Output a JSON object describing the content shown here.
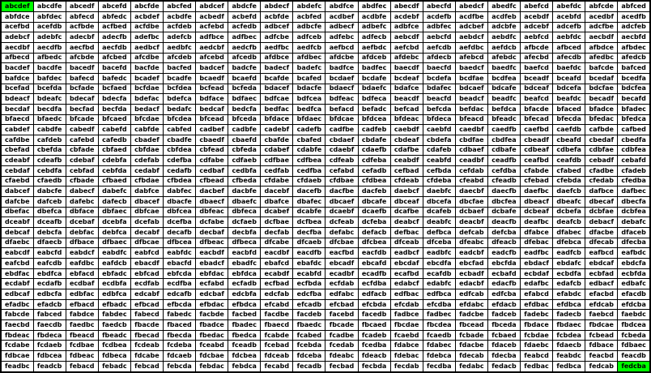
{
  "chart_data": {
    "type": "table",
    "columns": 20,
    "rows": 36,
    "highlighted_cells": [
      "abcdef",
      "fedcba"
    ],
    "colors": {
      "highlight": "#00ff00",
      "grid": "#000000",
      "text": "#000000",
      "background": "#ffffff"
    },
    "cells": [
      "abcdef",
      "abcdfe",
      "abcedf",
      "abcefd",
      "abcfde",
      "abcfed",
      "abdcef",
      "abdcfe",
      "abdecf",
      "abdefc",
      "abdfce",
      "abdfec",
      "abecdf",
      "abecfd",
      "abedcf",
      "abedfc",
      "abefcd",
      "abefdc",
      "abfcde",
      "abfced",
      "abfdce",
      "abfdec",
      "abfecd",
      "abfedc",
      "acbdef",
      "acbdfe",
      "acbedf",
      "acbefd",
      "acbfde",
      "acbfed",
      "acdbef",
      "acdbfe",
      "acdebf",
      "acdefb",
      "acdfbe",
      "acdfeb",
      "acebdf",
      "acebfd",
      "acedbf",
      "acedfb",
      "acefbd",
      "acefdb",
      "acfbde",
      "acfbed",
      "acfdbe",
      "acfdeb",
      "acfebd",
      "acfedb",
      "adbcef",
      "adbcfe",
      "adbecf",
      "adbefc",
      "adbfce",
      "adbfec",
      "adcbef",
      "adcbfe",
      "adcebf",
      "adcefb",
      "adcfbe",
      "adcfeb",
      "adebcf",
      "adebfc",
      "adecbf",
      "adecfb",
      "adefbc",
      "adefcb",
      "adfbce",
      "adfbec",
      "adfcbe",
      "adfceb",
      "adfebc",
      "adfecb",
      "aebcdf",
      "aebcfd",
      "aebdcf",
      "aebdfc",
      "aebfcd",
      "aebfdc",
      "aecbdf",
      "aecbfd",
      "aecdbf",
      "aecdfb",
      "aecfbd",
      "aecfdb",
      "aedbcf",
      "aedbfc",
      "aedcbf",
      "aedcfb",
      "aedfbc",
      "aedfcb",
      "aefbcd",
      "aefbdc",
      "aefcbd",
      "aefcdb",
      "aefdbc",
      "aefdcb",
      "afbcde",
      "afbced",
      "afbdce",
      "afbdec",
      "afbecd",
      "afbedc",
      "afcbde",
      "afcbed",
      "afcdbe",
      "afcdeb",
      "afcebd",
      "afcedb",
      "afdbce",
      "afdbec",
      "afdcbe",
      "afdceb",
      "afdebc",
      "afdecb",
      "afebcd",
      "afebdc",
      "afecbd",
      "afecdb",
      "afedbc",
      "afedcb",
      "bacdef",
      "bacdfe",
      "bacedf",
      "bacefd",
      "bacfde",
      "bacfed",
      "badcef",
      "badcfe",
      "badecf",
      "badefc",
      "badfce",
      "badfec",
      "baecdf",
      "baecfd",
      "baedcf",
      "baedfc",
      "baefcd",
      "baefdc",
      "bafcde",
      "bafced",
      "bafdce",
      "bafdec",
      "bafecd",
      "bafedc",
      "bcadef",
      "bcadfe",
      "bcaedf",
      "bcaefd",
      "bcafde",
      "bcafed",
      "bcdaef",
      "bcdafe",
      "bcdeaf",
      "bcdefa",
      "bcdfae",
      "bcdfea",
      "bceadf",
      "bceafd",
      "bcedaf",
      "bcedfa",
      "bcefad",
      "bcefda",
      "bcfade",
      "bcfaed",
      "bcfdae",
      "bcfdea",
      "bcfead",
      "bcfeda",
      "bdacef",
      "bdacfe",
      "bdaecf",
      "bdaefc",
      "bdafce",
      "bdafec",
      "bdcaef",
      "bdcafe",
      "bdceaf",
      "bdcefa",
      "bdcfae",
      "bdcfea",
      "bdeacf",
      "bdeafc",
      "bdecaf",
      "bdecfa",
      "bdefac",
      "bdefca",
      "bdface",
      "bdfaec",
      "bdfcae",
      "bdfcea",
      "bdfeac",
      "bdfeca",
      "beacdf",
      "beacfd",
      "beadcf",
      "beadfc",
      "beafcd",
      "beafdc",
      "becadf",
      "becafd",
      "becdaf",
      "becdfa",
      "becfad",
      "becfda",
      "bedacf",
      "bedafc",
      "bedcaf",
      "bedcfa",
      "bedfac",
      "bedfca",
      "befacd",
      "befadc",
      "befcad",
      "befcda",
      "befdac",
      "befdca",
      "bfacde",
      "bfaced",
      "bfadce",
      "bfadec",
      "bfaecd",
      "bfaedc",
      "bfcade",
      "bfcaed",
      "bfcdae",
      "bfcdea",
      "bfcead",
      "bfceda",
      "bfdace",
      "bfdaec",
      "bfdcae",
      "bfdcea",
      "bfdeac",
      "bfdeca",
      "bfeacd",
      "bfeadc",
      "bfecad",
      "bfecda",
      "bfedac",
      "bfedca",
      "cabdef",
      "cabdfe",
      "cabedf",
      "cabefd",
      "cabfde",
      "cabfed",
      "cadbef",
      "cadbfe",
      "cadebf",
      "cadefb",
      "cadfbe",
      "cadfeb",
      "caebdf",
      "caebfd",
      "caedbf",
      "caedfb",
      "caefbd",
      "caefdb",
      "cafbde",
      "cafbed",
      "cafdbe",
      "cafdeb",
      "cafebd",
      "cafedb",
      "cbadef",
      "cbadfe",
      "cbaedf",
      "cbaefd",
      "cbafde",
      "cbafed",
      "cbdaef",
      "cbdafe",
      "cbdeaf",
      "cbdefa",
      "cbdfae",
      "cbdfea",
      "cbeadf",
      "cbeafd",
      "cbedaf",
      "cbedfa",
      "cbefad",
      "cbefda",
      "cbfade",
      "cbfaed",
      "cbfdae",
      "cbfdea",
      "cbfead",
      "cbfeda",
      "cdabef",
      "cdabfe",
      "cdaebf",
      "cdaefb",
      "cdafbe",
      "cdafeb",
      "cdbaef",
      "cdbafe",
      "cdbeaf",
      "cdbefa",
      "cdbfae",
      "cdbfea",
      "cdeabf",
      "cdeafb",
      "cdebaf",
      "cdebfa",
      "cdefab",
      "cdefba",
      "cdfabe",
      "cdfaeb",
      "cdfbae",
      "cdfbea",
      "cdfeab",
      "cdfeba",
      "ceabdf",
      "ceabfd",
      "ceadbf",
      "ceadfb",
      "ceafbd",
      "ceafdb",
      "cebadf",
      "cebafd",
      "cebdaf",
      "cebdfa",
      "cebfad",
      "cebfda",
      "cedabf",
      "cedafb",
      "cedbaf",
      "cedbfa",
      "cedfab",
      "cedfba",
      "cefabd",
      "cefadb",
      "cefbad",
      "cefbda",
      "cefdab",
      "cefdba",
      "cfabde",
      "cfabed",
      "cfadbe",
      "cfadeb",
      "cfaebd",
      "cfaedb",
      "cfbade",
      "cfbaed",
      "cfbdae",
      "cfbdea",
      "cfbead",
      "cfbeda",
      "cfdabe",
      "cfdaeb",
      "cfdbae",
      "cfdbea",
      "cfdeab",
      "cfdeba",
      "cfeabd",
      "cfeadb",
      "cfebad",
      "cfebda",
      "cfedab",
      "cfedba",
      "dabcef",
      "dabcfe",
      "dabecf",
      "dabefc",
      "dabfce",
      "dabfec",
      "dacbef",
      "dacbfe",
      "dacebf",
      "dacefb",
      "dacfbe",
      "dacfeb",
      "daebcf",
      "daebfc",
      "daecbf",
      "daecfb",
      "daefbc",
      "daefcb",
      "dafbce",
      "dafbec",
      "dafcbe",
      "dafceb",
      "dafebc",
      "dafecb",
      "dbacef",
      "dbacfe",
      "dbaecf",
      "dbaefc",
      "dbafce",
      "dbafec",
      "dbcaef",
      "dbcafe",
      "dbceaf",
      "dbcefa",
      "dbcfae",
      "dbcfea",
      "dbeacf",
      "dbeafc",
      "dbecaf",
      "dbecfa",
      "dbefac",
      "dbefca",
      "dbface",
      "dbfaec",
      "dbfcae",
      "dbfcea",
      "dbfeac",
      "dbfeca",
      "dcabef",
      "dcabfe",
      "dcaebf",
      "dcaefb",
      "dcafbe",
      "dcafeb",
      "dcbaef",
      "dcbafe",
      "dcbeaf",
      "dcbefa",
      "dcbfae",
      "dcbfea",
      "dceabf",
      "dceafb",
      "dcebaf",
      "dcebfa",
      "dcefab",
      "dcefba",
      "dcfabe",
      "dcfaeb",
      "dcfbae",
      "dcfbea",
      "dcfeab",
      "dcfeba",
      "deabcf",
      "deabfc",
      "deacbf",
      "deacfb",
      "deafbc",
      "deafcb",
      "debacf",
      "debafc",
      "debcaf",
      "debcfa",
      "debfac",
      "debfca",
      "decabf",
      "decafb",
      "decbaf",
      "decbfa",
      "decfab",
      "decfba",
      "defabc",
      "defacb",
      "defbac",
      "defbca",
      "defcab",
      "defcba",
      "dfabce",
      "dfabec",
      "dfacbe",
      "dfaceb",
      "dfaebc",
      "dfaecb",
      "dfbace",
      "dfbaec",
      "dfbcae",
      "dfbcea",
      "dfbeac",
      "dfbeca",
      "dfcabe",
      "dfcaeb",
      "dfcbae",
      "dfcbea",
      "dfceab",
      "dfceba",
      "dfeabc",
      "dfeacb",
      "dfebac",
      "dfebca",
      "dfecab",
      "dfecba",
      "eabcdf",
      "eabcfd",
      "eabdcf",
      "eabdfc",
      "eabfcd",
      "eabfdc",
      "eacbdf",
      "eacbfd",
      "eacdbf",
      "eacdfb",
      "eacfbd",
      "eacfdb",
      "eadbcf",
      "eadbfc",
      "eadcbf",
      "eadcfb",
      "eadfbc",
      "eadfcb",
      "eafbcd",
      "eafbdc",
      "eafcbd",
      "eafcdb",
      "eafdbc",
      "eafdcb",
      "ebacdf",
      "ebacfd",
      "ebadcf",
      "ebadfc",
      "ebafcd",
      "ebafdc",
      "ebcadf",
      "ebcafd",
      "ebcdaf",
      "ebcdfa",
      "ebcfad",
      "ebcfda",
      "ebdacf",
      "ebdafc",
      "ebdcaf",
      "ebdcfa",
      "ebdfac",
      "ebdfca",
      "ebfacd",
      "ebfadc",
      "ebfcad",
      "ebfcda",
      "ebfdac",
      "ebfdca",
      "ecabdf",
      "ecabfd",
      "ecadbf",
      "ecadfb",
      "ecafbd",
      "ecafdb",
      "ecbadf",
      "ecbafd",
      "ecbdaf",
      "ecbdfa",
      "ecbfad",
      "ecbfda",
      "ecdabf",
      "ecdafb",
      "ecdbaf",
      "ecdbfa",
      "ecdfab",
      "ecdfba",
      "ecfabd",
      "ecfadb",
      "ecfbad",
      "ecfbda",
      "ecfdab",
      "ecfdba",
      "edabcf",
      "edabfc",
      "edacbf",
      "edacfb",
      "edafbc",
      "edafcb",
      "edbacf",
      "edbafc",
      "edbcaf",
      "edbcfa",
      "edbfac",
      "edbfca",
      "edcabf",
      "edcafb",
      "edcbaf",
      "edcbfa",
      "edcfab",
      "edcfba",
      "edfabc",
      "edfacb",
      "edfbac",
      "edfbca",
      "edfcab",
      "edfcba",
      "efabcd",
      "efabdc",
      "efacbd",
      "efacdb",
      "efadbc",
      "efadcb",
      "efbacd",
      "efbadc",
      "efbcad",
      "efbcda",
      "efbdac",
      "efbdca",
      "efcabd",
      "efcadb",
      "efcbad",
      "efcbda",
      "efcdab",
      "efcdba",
      "efdabc",
      "efdacb",
      "efdbac",
      "efdbca",
      "efdcab",
      "efdcba",
      "fabcde",
      "fabced",
      "fabdce",
      "fabdec",
      "fabecd",
      "fabedc",
      "facbde",
      "facbed",
      "facdbe",
      "facdeb",
      "facebd",
      "facedb",
      "fadbce",
      "fadbec",
      "fadcbe",
      "fadceb",
      "fadebc",
      "fadecb",
      "faebcd",
      "faebdc",
      "faecbd",
      "faecdb",
      "faedbc",
      "faedcb",
      "fbacde",
      "fbaced",
      "fbadce",
      "fbadec",
      "fbaecd",
      "fbaedc",
      "fbcade",
      "fbcaed",
      "fbcdae",
      "fbcdea",
      "fbcead",
      "fbceda",
      "fbdace",
      "fbdaec",
      "fbdcae",
      "fbdcea",
      "fbdeac",
      "fbdeca",
      "fbeacd",
      "fbeadc",
      "fbecad",
      "fbecda",
      "fbedac",
      "fbedca",
      "fcabde",
      "fcabed",
      "fcadbe",
      "fcadeb",
      "fcaebd",
      "fcaedb",
      "fcbade",
      "fcbaed",
      "fcbdae",
      "fcbdea",
      "fcbead",
      "fcbeda",
      "fcdabe",
      "fcdaeb",
      "fcdbae",
      "fcdbea",
      "fcdeab",
      "fcdeba",
      "fceabd",
      "fceadb",
      "fcebad",
      "fcebda",
      "fcedab",
      "fcedba",
      "fdabce",
      "fdabec",
      "fdacbe",
      "fdaceb",
      "fdaebc",
      "fdaecb",
      "fdbace",
      "fdbaec",
      "fdbcae",
      "fdbcea",
      "fdbeac",
      "fdbeca",
      "fdcabe",
      "fdcaeb",
      "fdcbae",
      "fdcbea",
      "fdceab",
      "fdceba",
      "fdeabc",
      "fdeacb",
      "fdebac",
      "fdebca",
      "fdecab",
      "fdecba",
      "feabcd",
      "feabdc",
      "feacbd",
      "feacdb",
      "feadbc",
      "feadcb",
      "febacd",
      "febadc",
      "febcad",
      "febcda",
      "febdac",
      "febdca",
      "fecabd",
      "fecadb",
      "fecbad",
      "fecbda",
      "fecdab",
      "fecdba",
      "fedabc",
      "fedacb",
      "fedbac",
      "fedbca",
      "fedcab",
      "fedcba"
    ]
  }
}
